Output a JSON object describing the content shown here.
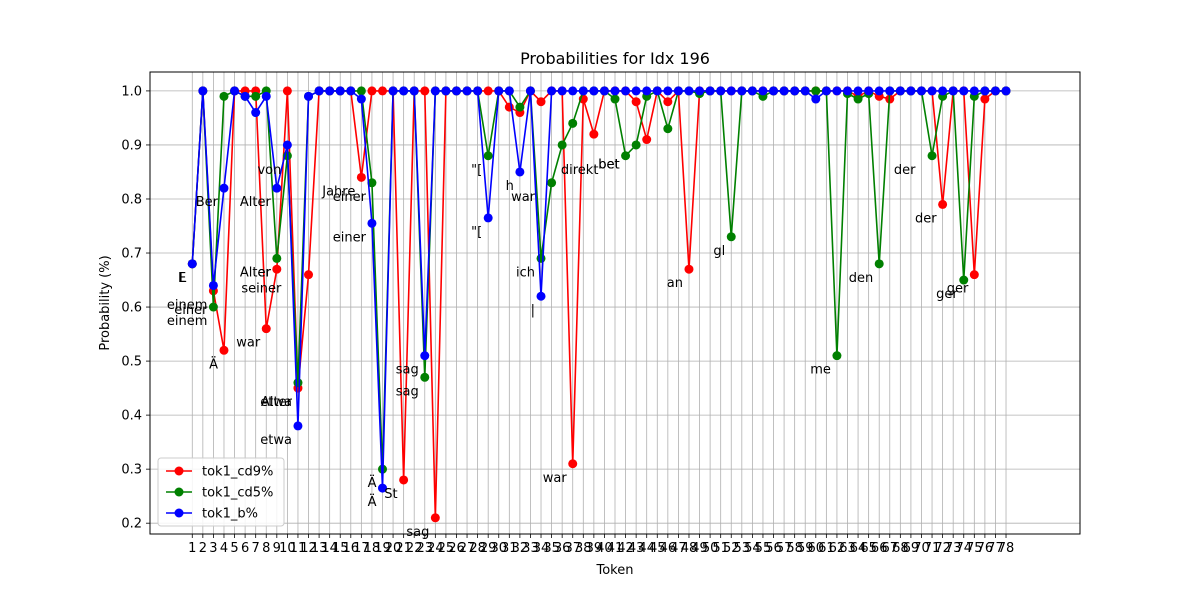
{
  "chart_data": {
    "type": "line",
    "title": "Probabilities for Idx 196",
    "xlabel": "Token",
    "ylabel": "Probability (%)",
    "xlim": [
      -3,
      85
    ],
    "ylim": [
      0.18,
      1.035
    ],
    "yticks": [
      "0.2",
      "0.3",
      "0.4",
      "0.5",
      "0.6",
      "0.7",
      "0.8",
      "0.9",
      "1.0"
    ],
    "grid": true,
    "legend_position": "lower-left",
    "x": [
      1,
      2,
      3,
      4,
      5,
      6,
      7,
      8,
      9,
      10,
      11,
      12,
      13,
      14,
      15,
      16,
      17,
      18,
      19,
      20,
      21,
      22,
      23,
      24,
      25,
      26,
      27,
      28,
      29,
      30,
      31,
      32,
      33,
      34,
      35,
      36,
      37,
      38,
      39,
      40,
      41,
      42,
      43,
      44,
      45,
      46,
      47,
      48,
      49,
      50,
      51,
      52,
      53,
      54,
      55,
      56,
      57,
      58,
      59,
      60,
      61,
      62,
      63,
      64,
      65,
      66,
      67,
      68,
      69,
      70,
      71,
      72,
      73,
      74,
      75,
      76,
      77,
      78
    ],
    "series": [
      {
        "name": "tok1_cd9%",
        "color": "#ff0000",
        "values": [
          0.68,
          1.0,
          0.63,
          0.52,
          1.0,
          1.0,
          1.0,
          0.56,
          0.67,
          1.0,
          0.45,
          0.66,
          1.0,
          1.0,
          1.0,
          1.0,
          0.84,
          1.0,
          1.0,
          1.0,
          0.28,
          1.0,
          1.0,
          0.21,
          1.0,
          1.0,
          1.0,
          1.0,
          1.0,
          1.0,
          0.97,
          0.96,
          1.0,
          0.98,
          1.0,
          1.0,
          0.31,
          0.985,
          0.92,
          1.0,
          1.0,
          1.0,
          0.98,
          0.91,
          1.0,
          0.98,
          1.0,
          0.67,
          1.0,
          1.0,
          1.0,
          1.0,
          1.0,
          1.0,
          1.0,
          1.0,
          1.0,
          1.0,
          1.0,
          1.0,
          1.0,
          1.0,
          1.0,
          0.99,
          1.0,
          0.99,
          0.985,
          1.0,
          1.0,
          1.0,
          1.0,
          0.79,
          1.0,
          1.0,
          0.66,
          0.985,
          1.0,
          1.0
        ]
      },
      {
        "name": "tok1_cd5%",
        "color": "#008000",
        "values": [
          0.68,
          1.0,
          0.6,
          0.99,
          1.0,
          0.99,
          0.99,
          1.0,
          0.69,
          0.88,
          0.46,
          0.99,
          1.0,
          1.0,
          1.0,
          1.0,
          1.0,
          0.83,
          0.3,
          1.0,
          1.0,
          1.0,
          0.47,
          1.0,
          1.0,
          1.0,
          1.0,
          1.0,
          0.88,
          1.0,
          1.0,
          0.97,
          1.0,
          0.69,
          0.83,
          0.9,
          0.94,
          1.0,
          1.0,
          1.0,
          0.985,
          0.88,
          0.9,
          0.99,
          1.0,
          0.93,
          1.0,
          1.0,
          0.995,
          1.0,
          1.0,
          0.73,
          1.0,
          1.0,
          0.99,
          1.0,
          1.0,
          1.0,
          1.0,
          1.0,
          1.0,
          0.51,
          0.995,
          0.985,
          0.995,
          0.68,
          1.0,
          1.0,
          1.0,
          1.0,
          0.88,
          0.99,
          1.0,
          0.65,
          0.99,
          1.0,
          1.0,
          1.0
        ]
      },
      {
        "name": "tok1_b%",
        "color": "#0000ff",
        "values": [
          0.68,
          1.0,
          0.64,
          0.82,
          1.0,
          0.99,
          0.96,
          0.99,
          0.82,
          0.9,
          0.38,
          0.99,
          1.0,
          1.0,
          1.0,
          1.0,
          0.985,
          0.755,
          0.265,
          1.0,
          1.0,
          1.0,
          0.51,
          1.0,
          1.0,
          1.0,
          1.0,
          1.0,
          0.765,
          1.0,
          1.0,
          0.85,
          1.0,
          0.62,
          1.0,
          1.0,
          1.0,
          1.0,
          1.0,
          1.0,
          1.0,
          1.0,
          1.0,
          1.0,
          1.0,
          1.0,
          1.0,
          1.0,
          1.0,
          1.0,
          1.0,
          1.0,
          1.0,
          1.0,
          1.0,
          1.0,
          1.0,
          1.0,
          1.0,
          0.985,
          1.0,
          1.0,
          1.0,
          1.0,
          1.0,
          1.0,
          1.0,
          1.0,
          1.0,
          1.0,
          1.0,
          1.0,
          1.0,
          1.0,
          1.0,
          1.0,
          1.0,
          1.0
        ]
      }
    ],
    "annotations": [
      {
        "text": "E",
        "x": 1,
        "y": 0.68
      },
      {
        "text": "L",
        "x": 1,
        "y": 0.68
      },
      {
        "text": "einem",
        "x": 3,
        "y": 0.63
      },
      {
        "text": "einer",
        "x": 3,
        "y": 0.62
      },
      {
        "text": "einem",
        "x": 3,
        "y": 0.6
      },
      {
        "text": "Ä",
        "x": 4,
        "y": 0.52
      },
      {
        "text": "Ber",
        "x": 4,
        "y": 0.82
      },
      {
        "text": "war",
        "x": 8,
        "y": 0.56
      },
      {
        "text": "Alter",
        "x": 9,
        "y": 0.82
      },
      {
        "text": "Alter",
        "x": 9,
        "y": 0.69
      },
      {
        "text": "er",
        "x": 9,
        "y": 0.69
      },
      {
        "text": "seiner",
        "x": 10,
        "y": 0.66
      },
      {
        "text": "von",
        "x": 10,
        "y": 0.88
      },
      {
        "text": "etwa",
        "x": 11,
        "y": 0.45
      },
      {
        "text": "Alter",
        "x": 11,
        "y": 0.45
      },
      {
        "text": "etwa",
        "x": 11,
        "y": 0.38
      },
      {
        "text": "Jahre",
        "x": 17,
        "y": 0.84
      },
      {
        "text": "einer",
        "x": 18,
        "y": 0.83
      },
      {
        "text": "einer",
        "x": 18,
        "y": 0.755
      },
      {
        "text": "Ä",
        "x": 19,
        "y": 0.3
      },
      {
        "text": "Ä",
        "x": 19,
        "y": 0.265
      },
      {
        "text": "St",
        "x": 21,
        "y": 0.28
      },
      {
        "text": "sag",
        "x": 23,
        "y": 0.51
      },
      {
        "text": "sag",
        "x": 23,
        "y": 0.47
      },
      {
        "text": "sag",
        "x": 24,
        "y": 0.21
      },
      {
        "text": "\"[",
        "x": 29,
        "y": 0.88
      },
      {
        "text": "\"[",
        "x": 29,
        "y": 0.765
      },
      {
        "text": "h",
        "x": 32,
        "y": 0.85
      },
      {
        "text": "war",
        "x": 34,
        "y": 0.83
      },
      {
        "text": "ich",
        "x": 34,
        "y": 0.69
      },
      {
        "text": "|",
        "x": 34,
        "y": 0.62
      },
      {
        "text": "war",
        "x": 37,
        "y": 0.31
      },
      {
        "text": "direkt",
        "x": 40,
        "y": 0.88
      },
      {
        "text": "bet",
        "x": 42,
        "y": 0.89
      },
      {
        "text": "bet",
        "x": 42,
        "y": 0.89
      },
      {
        "text": "an",
        "x": 48,
        "y": 0.67
      },
      {
        "text": "gl",
        "x": 52,
        "y": 0.73
      },
      {
        "text": "me",
        "x": 62,
        "y": 0.51
      },
      {
        "text": "den",
        "x": 66,
        "y": 0.68
      },
      {
        "text": "der",
        "x": 70,
        "y": 0.88
      },
      {
        "text": "der",
        "x": 72,
        "y": 0.79
      },
      {
        "text": "ger",
        "x": 74,
        "y": 0.65
      },
      {
        "text": "ger",
        "x": 75,
        "y": 0.66
      }
    ]
  }
}
